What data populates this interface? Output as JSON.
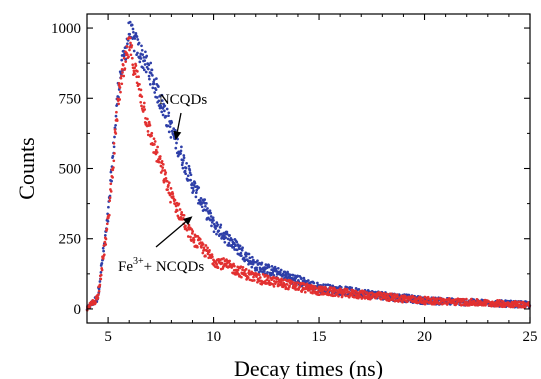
{
  "chart_data": {
    "type": "scatter",
    "title": "",
    "xlabel": "Decay times (ns)",
    "ylabel": "Counts",
    "xlim": [
      4,
      25
    ],
    "ylim": [
      -50,
      1050
    ],
    "xticks": [
      5,
      10,
      15,
      20,
      25
    ],
    "yticks": [
      0,
      250,
      500,
      750,
      1000
    ],
    "grid": false,
    "legend": "none",
    "peak_x": 6.0,
    "series": [
      {
        "name": "NCQDs",
        "color": "#2e3fa8",
        "curve": {
          "x": [
            4.0,
            4.5,
            5.0,
            5.5,
            6.0,
            7.0,
            8.0,
            9.0,
            10.0,
            12.0,
            15.0,
            20.0,
            25.0
          ],
          "y": [
            0,
            40,
            330,
            800,
            990,
            840,
            640,
            445,
            300,
            155,
            75,
            30,
            15
          ]
        }
      },
      {
        "name": "Fe³⁺+ NCQDs",
        "color": "#e23030",
        "curve": {
          "x": [
            4.0,
            4.5,
            5.0,
            5.5,
            6.0,
            7.0,
            8.0,
            9.0,
            10.0,
            12.0,
            15.0,
            20.0,
            25.0
          ],
          "y": [
            0,
            40,
            310,
            760,
            940,
            620,
            400,
            255,
            175,
            110,
            65,
            30,
            15
          ]
        }
      }
    ],
    "annotations": [
      {
        "label": "NCQDs",
        "points_to": {
          "x": 8.2,
          "y": 600
        }
      },
      {
        "label_base": "Fe",
        "label_sup": "3+",
        "label_rest": "+ NCQDs",
        "points_to": {
          "x": 9.0,
          "y": 330
        }
      }
    ]
  }
}
